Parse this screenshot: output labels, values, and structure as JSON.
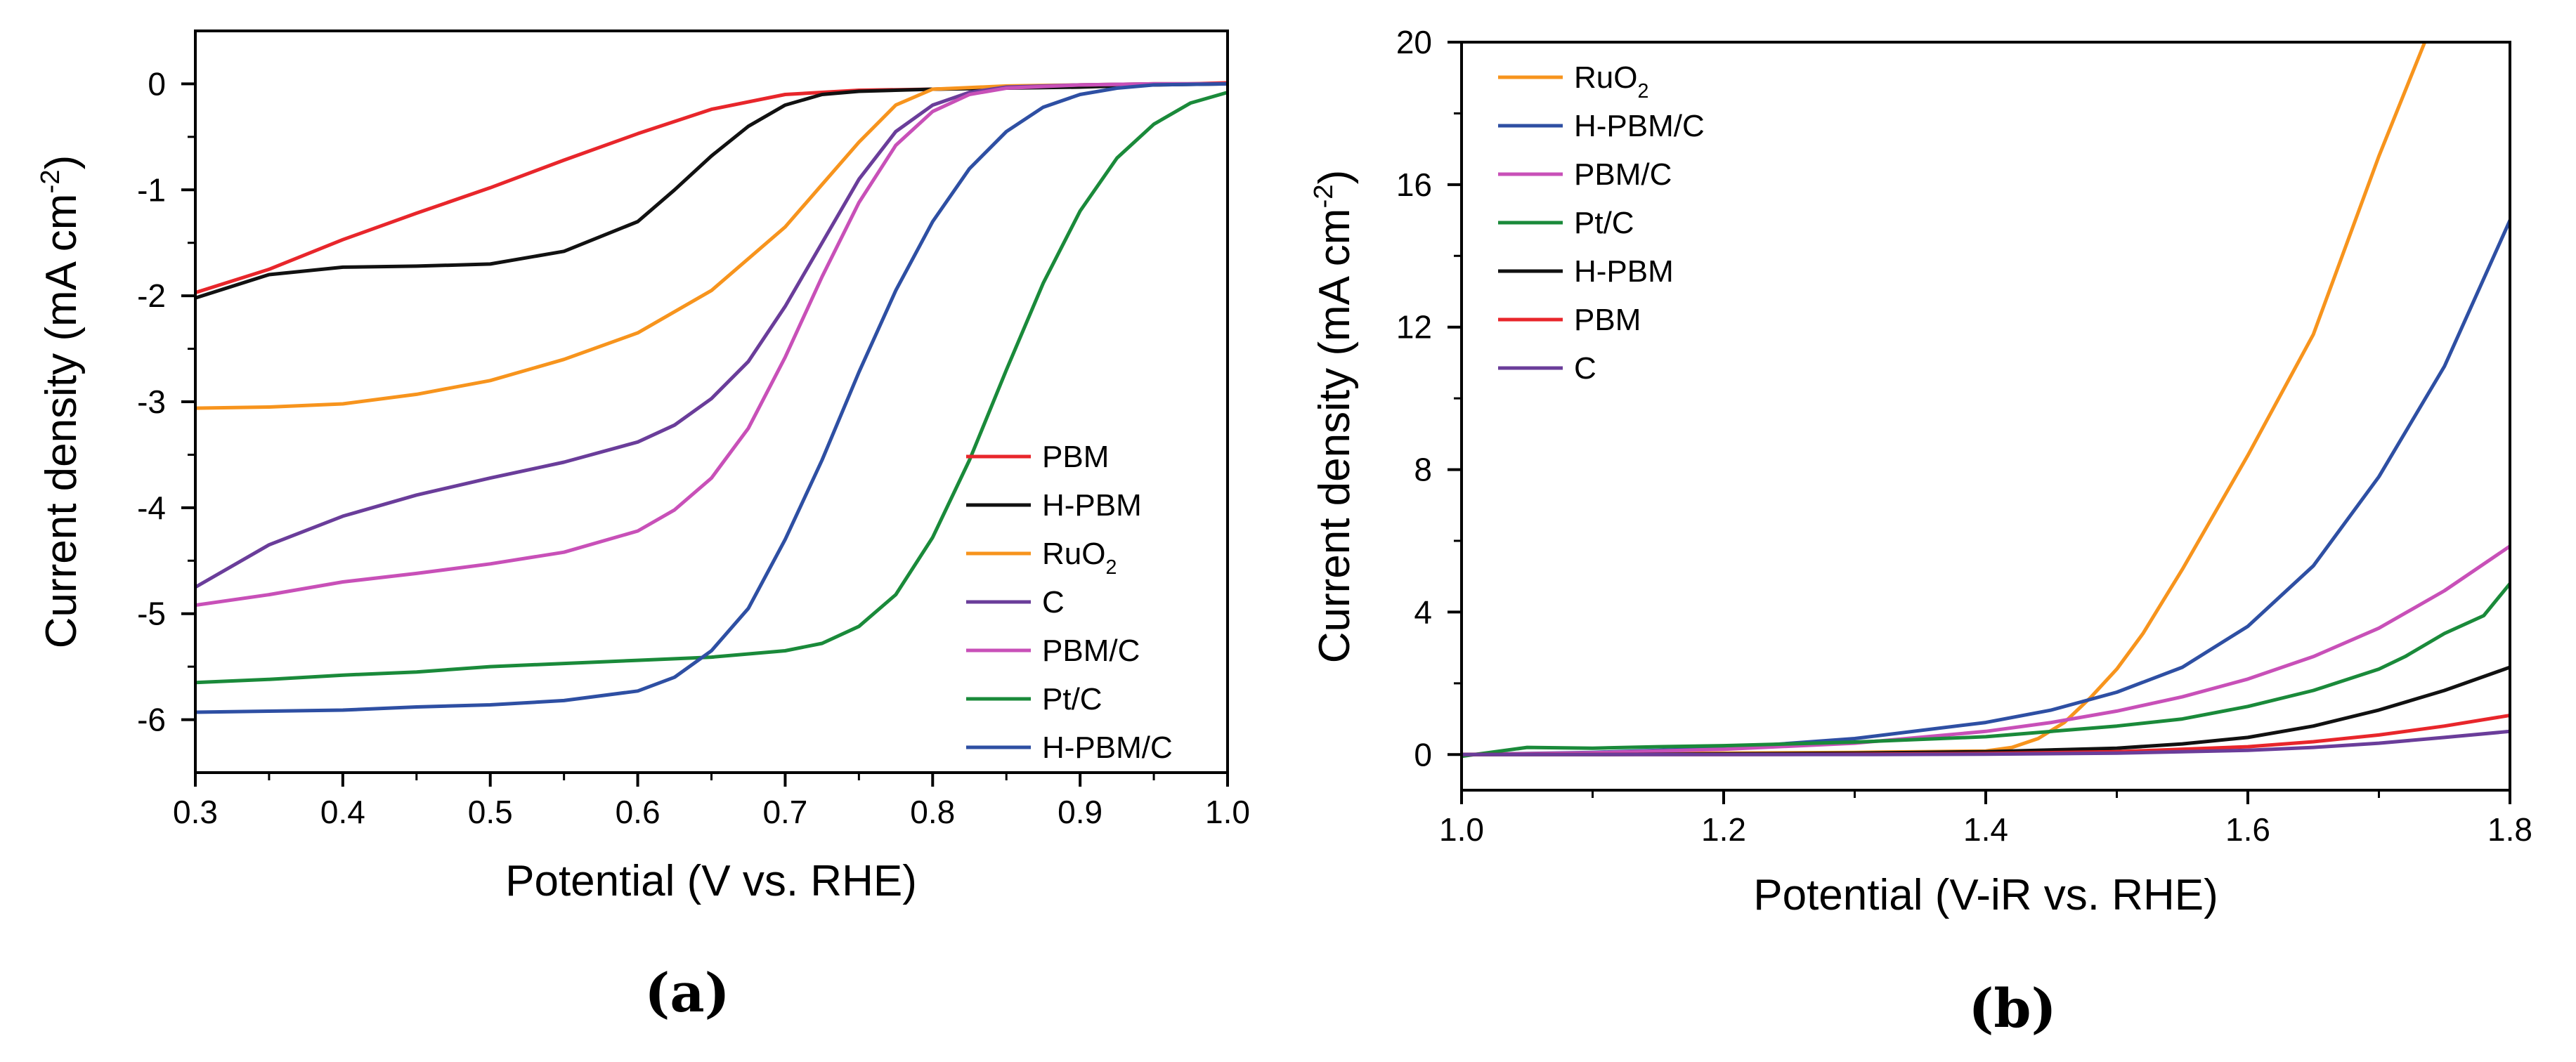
{
  "figure": {
    "panel_labels": [
      "(a)",
      "(b)"
    ]
  },
  "chart_data": [
    {
      "type": "line",
      "panel": "(a)",
      "title": "",
      "xlabel": "Potential (V vs. RHE)",
      "ylabel_main": "Current density (mA cm",
      "ylabel_sup": "-2",
      "ylabel_close": ")",
      "xlim": [
        0.3,
        1.0
      ],
      "ylim": [
        -6.5,
        0.5
      ],
      "xticks": [
        0.3,
        0.4,
        0.5,
        0.6,
        0.7,
        0.8,
        0.9,
        1.0
      ],
      "xtick_labels": [
        "0.3",
        "0.4",
        "0.5",
        "0.6",
        "0.7",
        "0.8",
        "0.9",
        "1.0"
      ],
      "yticks": [
        0,
        -1,
        -2,
        -3,
        -4,
        -5,
        -6
      ],
      "ytick_labels": [
        "0",
        "-1",
        "-2",
        "-3",
        "-4",
        "-5",
        "-6"
      ],
      "legend_position": "bottom-right",
      "series": [
        {
          "name": "PBM",
          "name_main": "PBM",
          "name_sub": "",
          "color": "#e8262b",
          "x": [
            0.3,
            0.35,
            0.4,
            0.45,
            0.5,
            0.55,
            0.6,
            0.65,
            0.7,
            0.75,
            0.8,
            0.85,
            0.9,
            0.95,
            1.0
          ],
          "y": [
            -1.97,
            -1.75,
            -1.47,
            -1.22,
            -0.98,
            -0.72,
            -0.47,
            -0.24,
            -0.1,
            -0.06,
            -0.05,
            -0.03,
            -0.02,
            -0.01,
            0.01
          ]
        },
        {
          "name": "H-PBM",
          "name_main": "H-PBM",
          "name_sub": "",
          "color": "#111111",
          "x": [
            0.3,
            0.35,
            0.4,
            0.45,
            0.5,
            0.55,
            0.6,
            0.625,
            0.65,
            0.675,
            0.7,
            0.725,
            0.75,
            0.8,
            0.85,
            0.9,
            0.95,
            1.0
          ],
          "y": [
            -2.02,
            -1.8,
            -1.73,
            -1.72,
            -1.7,
            -1.58,
            -1.3,
            -1.0,
            -0.68,
            -0.4,
            -0.2,
            -0.1,
            -0.07,
            -0.05,
            -0.04,
            -0.03,
            -0.01,
            0.0
          ]
        },
        {
          "name": "RuO2",
          "name_main": "RuO",
          "name_sub": "2",
          "color": "#f7941d",
          "x": [
            0.3,
            0.35,
            0.4,
            0.45,
            0.5,
            0.55,
            0.6,
            0.65,
            0.7,
            0.725,
            0.75,
            0.775,
            0.8,
            0.85,
            0.9,
            0.95,
            1.0
          ],
          "y": [
            -3.06,
            -3.05,
            -3.02,
            -2.93,
            -2.8,
            -2.6,
            -2.35,
            -1.95,
            -1.35,
            -0.95,
            -0.55,
            -0.2,
            -0.05,
            -0.02,
            -0.01,
            0.0,
            0.0
          ]
        },
        {
          "name": "C",
          "name_main": "C",
          "name_sub": "",
          "color": "#6a3d9a",
          "x": [
            0.3,
            0.35,
            0.4,
            0.45,
            0.5,
            0.55,
            0.6,
            0.625,
            0.65,
            0.675,
            0.7,
            0.725,
            0.75,
            0.775,
            0.8,
            0.825,
            0.85,
            0.9,
            0.95,
            1.0
          ],
          "y": [
            -4.75,
            -4.35,
            -4.08,
            -3.88,
            -3.72,
            -3.57,
            -3.38,
            -3.22,
            -2.97,
            -2.62,
            -2.1,
            -1.5,
            -0.9,
            -0.45,
            -0.2,
            -0.08,
            -0.03,
            -0.01,
            0.0,
            0.0
          ]
        },
        {
          "name": "PBM/C",
          "name_main": "PBM/C",
          "name_sub": "",
          "color": "#c850b8",
          "x": [
            0.3,
            0.35,
            0.4,
            0.45,
            0.5,
            0.55,
            0.6,
            0.625,
            0.65,
            0.675,
            0.7,
            0.725,
            0.75,
            0.775,
            0.8,
            0.825,
            0.85,
            0.9,
            0.95,
            1.0
          ],
          "y": [
            -4.92,
            -4.82,
            -4.7,
            -4.62,
            -4.53,
            -4.42,
            -4.22,
            -4.02,
            -3.72,
            -3.25,
            -2.58,
            -1.82,
            -1.12,
            -0.58,
            -0.26,
            -0.1,
            -0.04,
            -0.01,
            0.0,
            0.0
          ]
        },
        {
          "name": "Pt/C",
          "name_main": "Pt/C",
          "name_sub": "",
          "color": "#1a8a3a",
          "x": [
            0.3,
            0.35,
            0.4,
            0.45,
            0.5,
            0.55,
            0.6,
            0.65,
            0.7,
            0.725,
            0.75,
            0.775,
            0.8,
            0.825,
            0.85,
            0.875,
            0.9,
            0.925,
            0.95,
            0.975,
            1.0
          ],
          "y": [
            -5.65,
            -5.62,
            -5.58,
            -5.55,
            -5.5,
            -5.47,
            -5.44,
            -5.41,
            -5.35,
            -5.28,
            -5.12,
            -4.82,
            -4.28,
            -3.55,
            -2.7,
            -1.88,
            -1.2,
            -0.7,
            -0.38,
            -0.18,
            -0.08
          ]
        },
        {
          "name": "H-PBM/C",
          "name_main": "H-PBM/C",
          "name_sub": "",
          "color": "#2e4fa3",
          "x": [
            0.3,
            0.35,
            0.4,
            0.45,
            0.5,
            0.55,
            0.6,
            0.625,
            0.65,
            0.675,
            0.7,
            0.725,
            0.75,
            0.775,
            0.8,
            0.825,
            0.85,
            0.875,
            0.9,
            0.925,
            0.95,
            1.0
          ],
          "y": [
            -5.93,
            -5.92,
            -5.91,
            -5.88,
            -5.86,
            -5.82,
            -5.73,
            -5.6,
            -5.35,
            -4.95,
            -4.3,
            -3.55,
            -2.72,
            -1.95,
            -1.3,
            -0.8,
            -0.45,
            -0.22,
            -0.1,
            -0.04,
            -0.01,
            0.0
          ]
        }
      ]
    },
    {
      "type": "line",
      "panel": "(b)",
      "title": "",
      "xlabel": "Potential (V-iR vs. RHE)",
      "ylabel_main": "Current density (mA cm",
      "ylabel_sup": "-2",
      "ylabel_close": ")",
      "xlim": [
        1.0,
        1.8
      ],
      "ylim": [
        -1,
        20
      ],
      "xticks": [
        1.0,
        1.2,
        1.4,
        1.6,
        1.8
      ],
      "xtick_labels": [
        "1.0",
        "1.2",
        "1.4",
        "1.6",
        "1.8"
      ],
      "yticks": [
        0,
        4,
        8,
        12,
        16,
        20
      ],
      "ytick_labels": [
        "0",
        "4",
        "8",
        "12",
        "16",
        "20"
      ],
      "legend_position": "top-left",
      "series": [
        {
          "name": "RuO2",
          "name_main": "RuO",
          "name_sub": "2",
          "color": "#f7941d",
          "x": [
            1.0,
            1.1,
            1.2,
            1.3,
            1.35,
            1.4,
            1.42,
            1.44,
            1.46,
            1.48,
            1.5,
            1.52,
            1.55,
            1.6,
            1.65,
            1.7,
            1.735
          ],
          "y": [
            0.0,
            0.02,
            0.04,
            0.06,
            0.08,
            0.1,
            0.2,
            0.45,
            0.9,
            1.6,
            2.4,
            3.4,
            5.2,
            8.4,
            11.8,
            16.8,
            20.0
          ]
        },
        {
          "name": "H-PBM/C",
          "name_main": "H-PBM/C",
          "name_sub": "",
          "color": "#2e4fa3",
          "x": [
            1.0,
            1.1,
            1.2,
            1.3,
            1.4,
            1.45,
            1.5,
            1.55,
            1.6,
            1.65,
            1.7,
            1.75,
            1.8
          ],
          "y": [
            0.0,
            0.06,
            0.18,
            0.45,
            0.9,
            1.25,
            1.75,
            2.45,
            3.6,
            5.3,
            7.8,
            10.9,
            15.0
          ]
        },
        {
          "name": "PBM/C",
          "name_main": "PBM/C",
          "name_sub": "",
          "color": "#c850b8",
          "x": [
            1.0,
            1.1,
            1.2,
            1.3,
            1.4,
            1.45,
            1.5,
            1.55,
            1.6,
            1.65,
            1.7,
            1.75,
            1.8
          ],
          "y": [
            0.0,
            0.05,
            0.15,
            0.32,
            0.65,
            0.9,
            1.22,
            1.62,
            2.12,
            2.75,
            3.55,
            4.6,
            5.85
          ]
        },
        {
          "name": "Pt/C",
          "name_main": "Pt/C",
          "name_sub": "",
          "color": "#1a8a3a",
          "x": [
            1.0,
            1.05,
            1.1,
            1.15,
            1.2,
            1.3,
            1.4,
            1.5,
            1.55,
            1.6,
            1.65,
            1.7,
            1.72,
            1.75,
            1.78,
            1.8
          ],
          "y": [
            -0.05,
            0.2,
            0.18,
            0.22,
            0.25,
            0.35,
            0.5,
            0.8,
            1.0,
            1.35,
            1.8,
            2.4,
            2.75,
            3.4,
            3.9,
            4.8
          ]
        },
        {
          "name": "H-PBM",
          "name_main": "H-PBM",
          "name_sub": "",
          "color": "#111111",
          "x": [
            1.0,
            1.1,
            1.2,
            1.3,
            1.4,
            1.5,
            1.55,
            1.6,
            1.65,
            1.7,
            1.75,
            1.8
          ],
          "y": [
            0.0,
            0.0,
            0.02,
            0.04,
            0.08,
            0.18,
            0.3,
            0.48,
            0.8,
            1.25,
            1.8,
            2.45
          ]
        },
        {
          "name": "PBM",
          "name_main": "PBM",
          "name_sub": "",
          "color": "#e8262b",
          "x": [
            1.0,
            1.1,
            1.2,
            1.3,
            1.4,
            1.5,
            1.6,
            1.65,
            1.7,
            1.75,
            1.8
          ],
          "y": [
            0.0,
            0.0,
            0.0,
            0.01,
            0.03,
            0.08,
            0.22,
            0.36,
            0.55,
            0.8,
            1.1
          ]
        },
        {
          "name": "C",
          "name_main": "C",
          "name_sub": "",
          "color": "#6a3d9a",
          "x": [
            1.0,
            1.1,
            1.2,
            1.3,
            1.4,
            1.5,
            1.6,
            1.65,
            1.7,
            1.75,
            1.8
          ],
          "y": [
            0.0,
            0.0,
            0.0,
            0.0,
            0.01,
            0.04,
            0.12,
            0.2,
            0.32,
            0.48,
            0.65
          ]
        }
      ]
    }
  ]
}
